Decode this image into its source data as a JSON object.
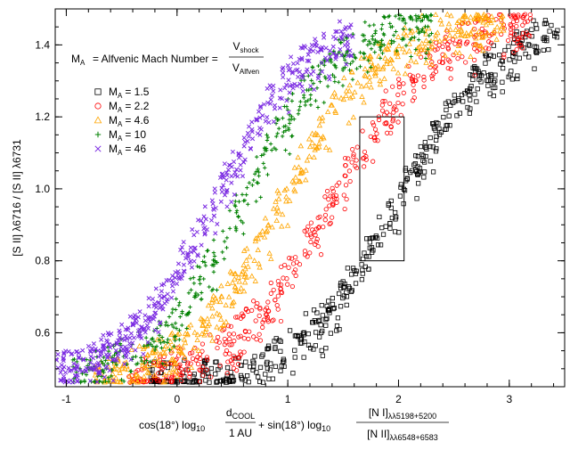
{
  "chart_data": {
    "type": "scatter",
    "xlim": [
      -1.1,
      3.5
    ],
    "ylim": [
      0.45,
      1.5
    ],
    "x_ticks": [
      -1,
      0,
      1,
      2,
      3
    ],
    "x_tick_labels": [
      "-1",
      "0",
      "1",
      "2",
      "3"
    ],
    "y_ticks": [
      0.6,
      0.8,
      1.0,
      1.2,
      1.4
    ],
    "y_tick_labels": [
      "0.6",
      "0.8",
      "1.0",
      "1.2",
      "1.4"
    ],
    "ylabel": "[S II] λ6716 / [S II] λ6731",
    "xlabel": {
      "prefix": "cos(18°) log",
      "log_sub": "10",
      "frac1_num": "d",
      "frac1_num_sub": "COOL",
      "frac1_den": "1 AU",
      "middle": "+ sin(18°) log",
      "frac2_num": "[N I]",
      "frac2_num_sub": "λλ5198+5200",
      "frac2_den": "[N II]",
      "frac2_den_sub": "λλ6548+6583"
    },
    "annotation": {
      "lhs": "M",
      "lhs_sub": "A",
      "text": "= Alfvenic Mach Number =",
      "num": "V",
      "num_sub": "shock",
      "den": "V",
      "den_sub": "Alfven"
    },
    "box": {
      "x0": 1.65,
      "x1": 2.05,
      "y0": 0.8,
      "y1": 1.2
    },
    "series": [
      {
        "name_main": "M",
        "name_sub": "A",
        "name_value": "= 1.5",
        "marker": "square",
        "color": "#000000",
        "curve": {
          "x0": 2.0,
          "k": 2.2,
          "ymin": 0.47,
          "ymax": 1.49,
          "xmin": -0.25,
          "xmax": 3.45
        }
      },
      {
        "name_main": "M",
        "name_sub": "A",
        "name_value": "= 2.2",
        "marker": "circle",
        "color": "#ff0000",
        "curve": {
          "x0": 1.4,
          "k": 2.2,
          "ymin": 0.47,
          "ymax": 1.49,
          "xmin": -0.45,
          "xmax": 3.2
        }
      },
      {
        "name_main": "M",
        "name_sub": "A",
        "name_value": "= 4.6",
        "marker": "triangle",
        "color": "#ffa500",
        "curve": {
          "x0": 0.95,
          "k": 2.3,
          "ymin": 0.47,
          "ymax": 1.49,
          "xmin": -0.75,
          "xmax": 2.95
        }
      },
      {
        "name_main": "M",
        "name_sub": "A",
        "name_value": "= 10",
        "marker": "plus",
        "color": "#008000",
        "curve": {
          "x0": 0.6,
          "k": 2.4,
          "ymin": 0.47,
          "ymax": 1.49,
          "xmin": -0.95,
          "xmax": 2.3
        }
      },
      {
        "name_main": "M",
        "name_sub": "A",
        "name_value": "= 46",
        "marker": "cross",
        "color": "#7b2be2",
        "curve": {
          "x0": 0.35,
          "k": 2.4,
          "ymin": 0.47,
          "ymax": 1.49,
          "xmin": -1.1,
          "xmax": 1.6
        }
      }
    ]
  }
}
